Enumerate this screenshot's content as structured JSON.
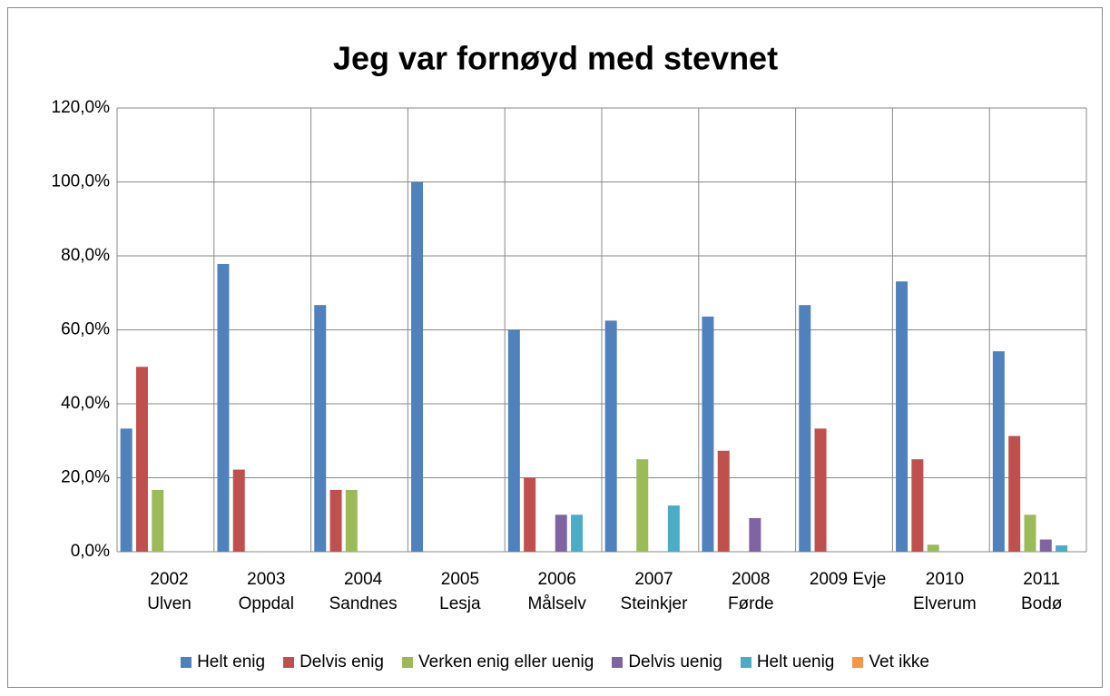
{
  "chart_data": {
    "type": "bar",
    "title": "Jeg var fornøyd med stevnet",
    "categories": [
      "2002\nUlven",
      "2003\nOppdal",
      "2004\nSandnes",
      "2005\nLesja",
      "2006\nMålselv",
      "2007\nSteinkjer",
      "2008\nFørde",
      "2009 Evje",
      "2010\nElverum",
      "2011\nBodø"
    ],
    "series": [
      {
        "name": "Helt enig",
        "color": "#4f81bd",
        "values": [
          33.3,
          77.8,
          66.7,
          100,
          60,
          62.5,
          63.6,
          66.7,
          73.1,
          54.2
        ]
      },
      {
        "name": "Delvis enig",
        "color": "#c0504d",
        "values": [
          50,
          22.2,
          16.7,
          0,
          20,
          0,
          27.3,
          33.3,
          25,
          31.3
        ]
      },
      {
        "name": "Verken enig eller uenig",
        "color": "#9bbb59",
        "values": [
          16.7,
          0,
          16.7,
          0,
          0,
          25,
          0,
          0,
          1.9,
          10
        ]
      },
      {
        "name": "Delvis uenig",
        "color": "#8064a2",
        "values": [
          0,
          0,
          0,
          0,
          10,
          0,
          9.1,
          0,
          0,
          3.3
        ]
      },
      {
        "name": "Helt uenig",
        "color": "#4bacc6",
        "values": [
          0,
          0,
          0,
          0,
          10,
          12.5,
          0,
          0,
          0,
          1.7
        ]
      },
      {
        "name": "Vet ikke",
        "color": "#f79646",
        "values": [
          0,
          0,
          0,
          0,
          0,
          0,
          0,
          0,
          0,
          0
        ]
      }
    ],
    "ylim": [
      0,
      120
    ],
    "yticks": [
      {
        "value": 0,
        "label": "0,0%"
      },
      {
        "value": 20,
        "label": "20,0%"
      },
      {
        "value": 40,
        "label": "40,0%"
      },
      {
        "value": 60,
        "label": "60,0%"
      },
      {
        "value": 80,
        "label": "80,0%"
      },
      {
        "value": 100,
        "label": "100,0%"
      },
      {
        "value": 120,
        "label": "120,0%"
      }
    ],
    "grid": true,
    "legend": "bottom"
  }
}
